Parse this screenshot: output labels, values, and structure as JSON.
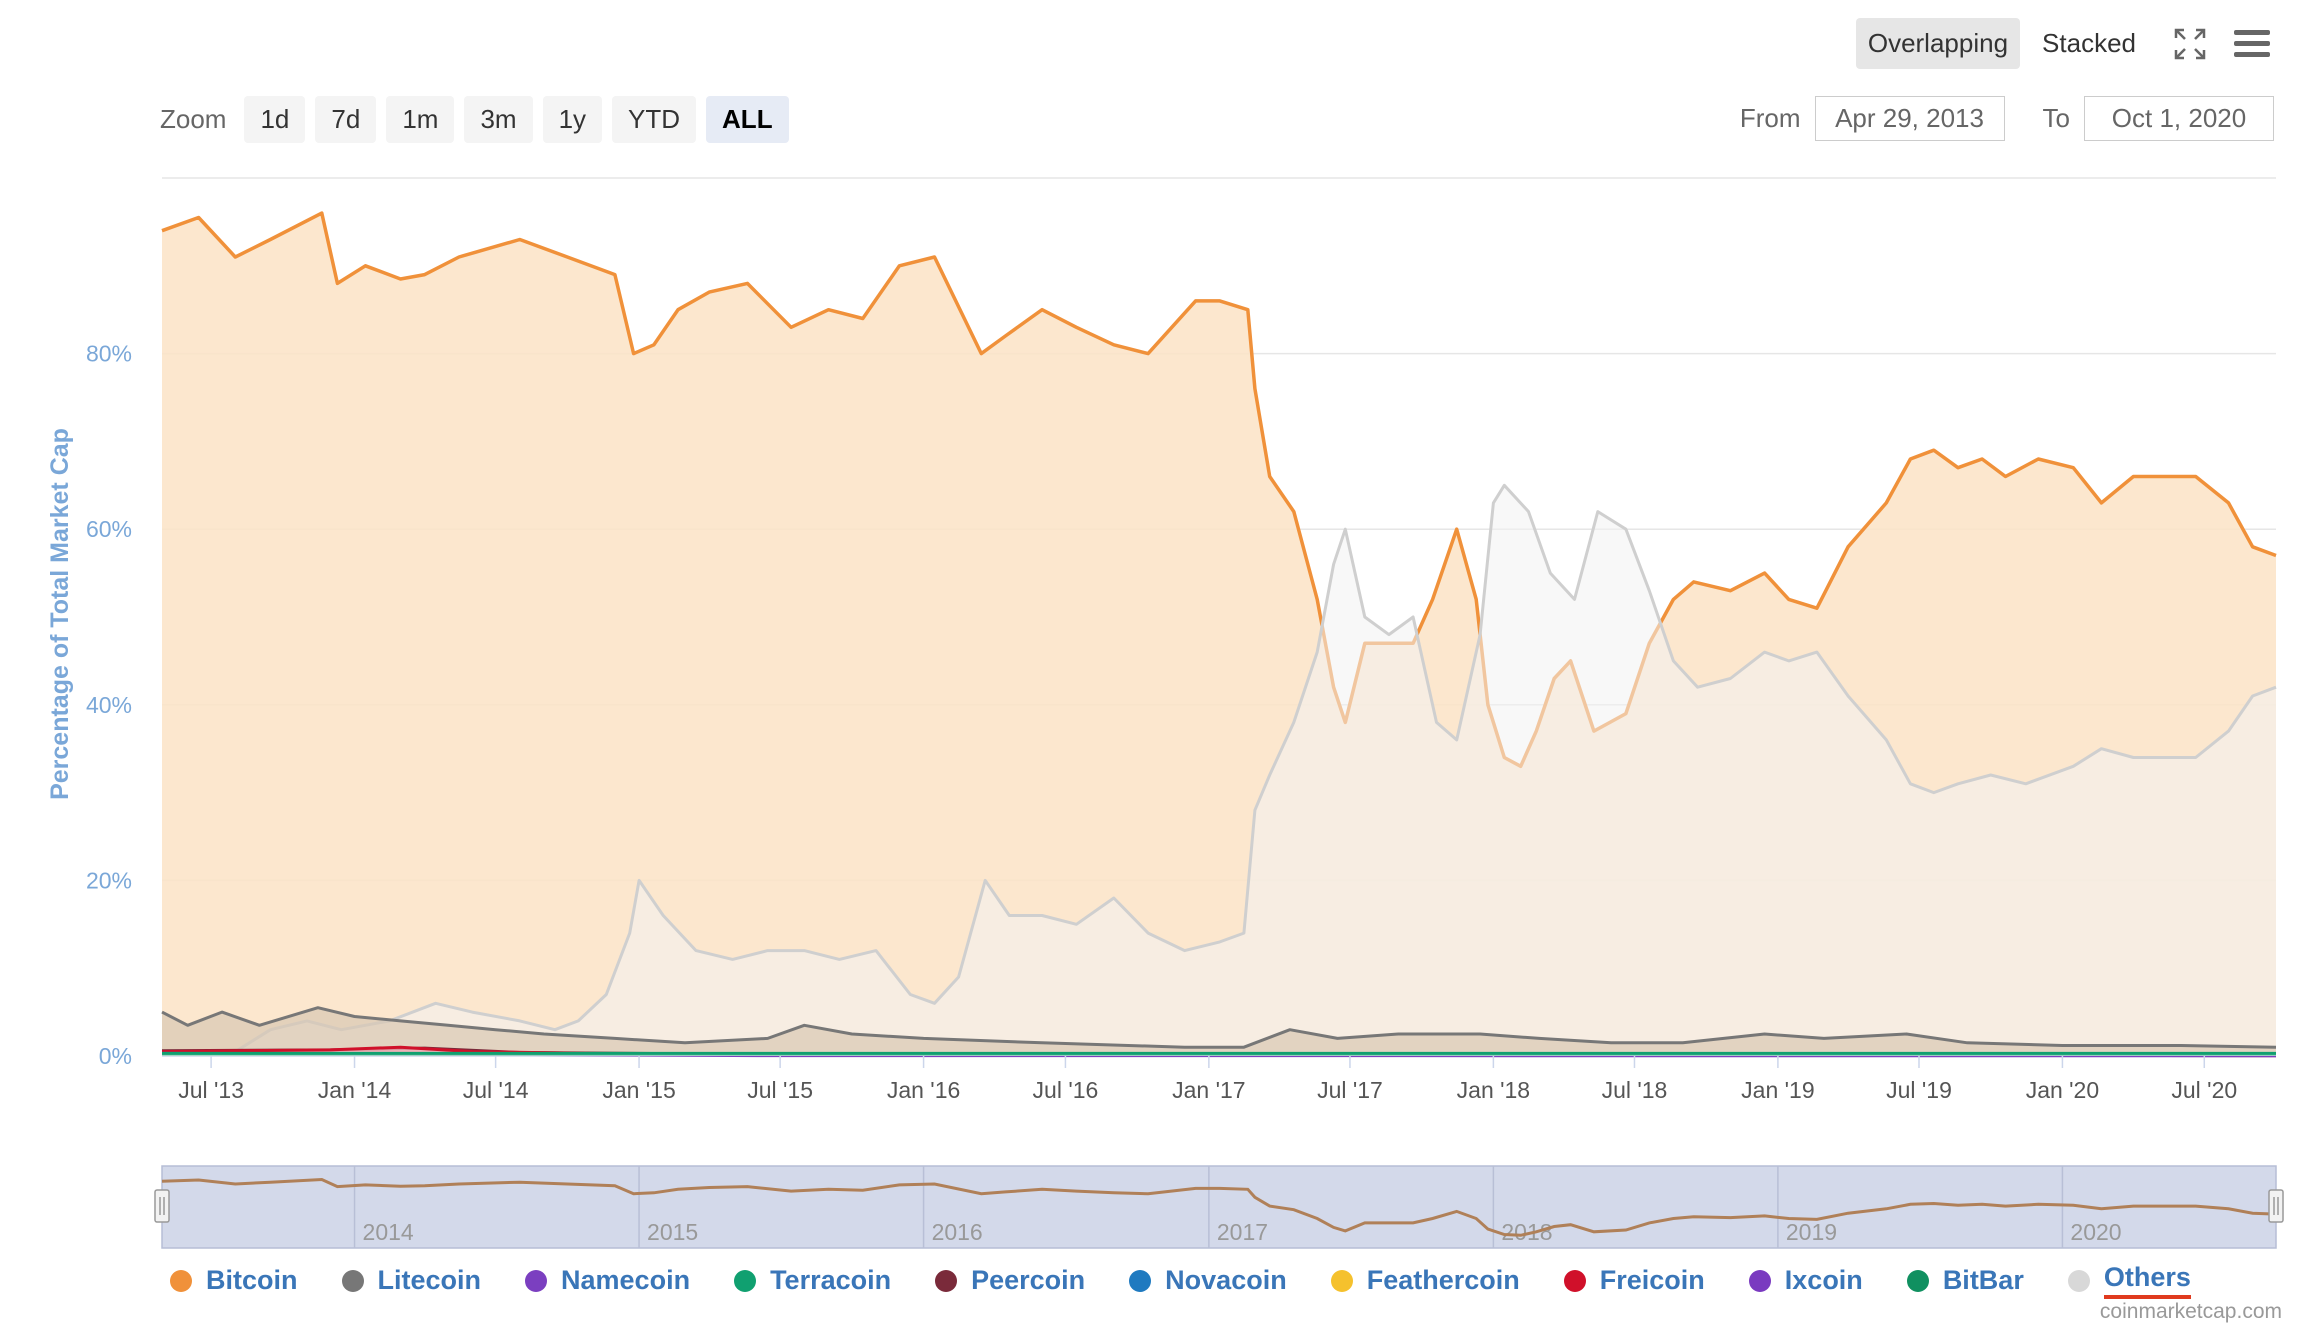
{
  "toolbar": {
    "overlapping_label": "Overlapping",
    "stacked_label": "Stacked",
    "fullscreen_icon": "fullscreen-icon",
    "menu_icon": "hamburger-menu-icon"
  },
  "zoom": {
    "label": "Zoom",
    "buttons": [
      "1d",
      "7d",
      "1m",
      "3m",
      "1y",
      "YTD",
      "ALL"
    ],
    "active": "ALL"
  },
  "range": {
    "from_label": "From",
    "from_value": "Apr 29, 2013",
    "to_label": "To",
    "to_value": "Oct 1, 2020"
  },
  "chart_data": {
    "type": "area",
    "title": "",
    "ylabel": "Percentage of Total Market Cap",
    "xlabel": "",
    "ylim": [
      0,
      100
    ],
    "yticks": [
      "0%",
      "20%",
      "40%",
      "60%",
      "80%"
    ],
    "x_tick_labels": [
      "Jul '13",
      "Jan '14",
      "Jul '14",
      "Jan '15",
      "Jul '15",
      "Jan '16",
      "Jul '16",
      "Jan '17",
      "Jul '17",
      "Jan '18",
      "Jul '18",
      "Jan '19",
      "Jul '19",
      "Jan '20",
      "Jul '20"
    ],
    "navigator_labels": [
      "2014",
      "2015",
      "2016",
      "2017",
      "2018",
      "2019",
      "2020"
    ],
    "grid": true,
    "legend_position": "bottom",
    "series": [
      {
        "name": "Bitcoin",
        "color": "#f0913a",
        "points": [
          [
            "2013-04-29",
            94
          ],
          [
            "2013-06-15",
            95.5
          ],
          [
            "2013-08-01",
            91
          ],
          [
            "2013-09-15",
            93
          ],
          [
            "2013-11-20",
            96
          ],
          [
            "2013-12-10",
            88
          ],
          [
            "2014-01-15",
            90
          ],
          [
            "2014-03-01",
            88.5
          ],
          [
            "2014-04-01",
            89
          ],
          [
            "2014-05-15",
            91
          ],
          [
            "2014-08-01",
            93
          ],
          [
            "2014-10-01",
            91
          ],
          [
            "2014-12-01",
            89
          ],
          [
            "2014-12-25",
            80
          ],
          [
            "2015-01-20",
            81
          ],
          [
            "2015-02-20",
            85
          ],
          [
            "2015-04-01",
            87
          ],
          [
            "2015-05-20",
            88
          ],
          [
            "2015-07-15",
            83
          ],
          [
            "2015-09-01",
            85
          ],
          [
            "2015-10-15",
            84
          ],
          [
            "2015-12-01",
            90
          ],
          [
            "2016-01-15",
            91
          ],
          [
            "2016-03-15",
            80
          ],
          [
            "2016-04-15",
            82
          ],
          [
            "2016-06-01",
            85
          ],
          [
            "2016-07-15",
            83
          ],
          [
            "2016-09-01",
            81
          ],
          [
            "2016-10-15",
            80
          ],
          [
            "2016-12-15",
            86
          ],
          [
            "2017-01-15",
            86
          ],
          [
            "2017-02-20",
            85
          ],
          [
            "2017-03-01",
            76
          ],
          [
            "2017-03-20",
            66
          ],
          [
            "2017-04-20",
            62
          ],
          [
            "2017-05-20",
            52
          ],
          [
            "2017-06-10",
            42
          ],
          [
            "2017-06-25",
            38
          ],
          [
            "2017-07-20",
            47
          ],
          [
            "2017-08-20",
            47
          ],
          [
            "2017-09-20",
            47
          ],
          [
            "2017-10-15",
            52
          ],
          [
            "2017-11-15",
            60
          ],
          [
            "2017-12-10",
            52
          ],
          [
            "2017-12-25",
            40
          ],
          [
            "2018-01-15",
            34
          ],
          [
            "2018-02-05",
            33
          ],
          [
            "2018-02-25",
            37
          ],
          [
            "2018-03-20",
            43
          ],
          [
            "2018-04-10",
            45
          ],
          [
            "2018-05-10",
            37
          ],
          [
            "2018-06-20",
            39
          ],
          [
            "2018-07-20",
            47
          ],
          [
            "2018-08-20",
            52
          ],
          [
            "2018-09-15",
            54
          ],
          [
            "2018-11-01",
            53
          ],
          [
            "2018-12-15",
            55
          ],
          [
            "2019-01-15",
            52
          ],
          [
            "2019-02-20",
            51
          ],
          [
            "2019-04-01",
            58
          ],
          [
            "2019-05-20",
            63
          ],
          [
            "2019-06-20",
            68
          ],
          [
            "2019-07-20",
            69
          ],
          [
            "2019-08-20",
            67
          ],
          [
            "2019-09-20",
            68
          ],
          [
            "2019-10-20",
            66
          ],
          [
            "2019-12-01",
            68
          ],
          [
            "2020-01-15",
            67
          ],
          [
            "2020-02-20",
            63
          ],
          [
            "2020-04-01",
            66
          ],
          [
            "2020-05-20",
            66
          ],
          [
            "2020-06-20",
            66
          ],
          [
            "2020-08-01",
            63
          ],
          [
            "2020-09-01",
            58
          ],
          [
            "2020-10-01",
            57
          ]
        ]
      },
      {
        "name": "Others",
        "color": "#cfcfcf",
        "points": [
          [
            "2013-04-29",
            0.5
          ],
          [
            "2013-08-01",
            0.5
          ],
          [
            "2013-09-15",
            3
          ],
          [
            "2013-11-01",
            4
          ],
          [
            "2013-12-15",
            3
          ],
          [
            "2014-02-15",
            4
          ],
          [
            "2014-04-15",
            6
          ],
          [
            "2014-06-01",
            5
          ],
          [
            "2014-08-01",
            4
          ],
          [
            "2014-09-15",
            3
          ],
          [
            "2014-10-15",
            4
          ],
          [
            "2014-11-20",
            7
          ],
          [
            "2014-12-20",
            14
          ],
          [
            "2015-01-01",
            20
          ],
          [
            "2015-02-01",
            16
          ],
          [
            "2015-03-15",
            12
          ],
          [
            "2015-05-01",
            11
          ],
          [
            "2015-06-15",
            12
          ],
          [
            "2015-08-01",
            12
          ],
          [
            "2015-09-15",
            11
          ],
          [
            "2015-11-01",
            12
          ],
          [
            "2015-12-15",
            7
          ],
          [
            "2016-01-15",
            6
          ],
          [
            "2016-02-15",
            9
          ],
          [
            "2016-03-20",
            20
          ],
          [
            "2016-04-20",
            16
          ],
          [
            "2016-06-01",
            16
          ],
          [
            "2016-07-15",
            15
          ],
          [
            "2016-09-01",
            18
          ],
          [
            "2016-10-15",
            14
          ],
          [
            "2016-12-01",
            12
          ],
          [
            "2017-01-15",
            13
          ],
          [
            "2017-02-15",
            14
          ],
          [
            "2017-03-01",
            28
          ],
          [
            "2017-03-20",
            32
          ],
          [
            "2017-04-20",
            38
          ],
          [
            "2017-05-20",
            46
          ],
          [
            "2017-06-10",
            56
          ],
          [
            "2017-06-25",
            60
          ],
          [
            "2017-07-20",
            50
          ],
          [
            "2017-08-20",
            48
          ],
          [
            "2017-09-20",
            50
          ],
          [
            "2017-10-20",
            38
          ],
          [
            "2017-11-15",
            36
          ],
          [
            "2017-12-15",
            48
          ],
          [
            "2018-01-01",
            63
          ],
          [
            "2018-01-15",
            65
          ],
          [
            "2018-02-15",
            62
          ],
          [
            "2018-03-15",
            55
          ],
          [
            "2018-04-15",
            52
          ],
          [
            "2018-05-15",
            62
          ],
          [
            "2018-06-20",
            60
          ],
          [
            "2018-07-20",
            53
          ],
          [
            "2018-08-20",
            45
          ],
          [
            "2018-09-20",
            42
          ],
          [
            "2018-11-01",
            43
          ],
          [
            "2018-12-15",
            46
          ],
          [
            "2019-01-15",
            45
          ],
          [
            "2019-02-20",
            46
          ],
          [
            "2019-04-01",
            41
          ],
          [
            "2019-05-20",
            36
          ],
          [
            "2019-06-20",
            31
          ],
          [
            "2019-07-20",
            30
          ],
          [
            "2019-08-20",
            31
          ],
          [
            "2019-10-01",
            32
          ],
          [
            "2019-11-15",
            31
          ],
          [
            "2020-01-15",
            33
          ],
          [
            "2020-02-20",
            35
          ],
          [
            "2020-04-01",
            34
          ],
          [
            "2020-05-15",
            34
          ],
          [
            "2020-06-20",
            34
          ],
          [
            "2020-08-01",
            37
          ],
          [
            "2020-09-01",
            41
          ],
          [
            "2020-10-01",
            42
          ]
        ]
      },
      {
        "name": "Litecoin",
        "color": "#777777",
        "points": [
          [
            "2013-04-29",
            5
          ],
          [
            "2013-06-01",
            3.5
          ],
          [
            "2013-07-15",
            5
          ],
          [
            "2013-09-01",
            3.5
          ],
          [
            "2013-11-15",
            5.5
          ],
          [
            "2014-01-01",
            4.5
          ],
          [
            "2014-03-01",
            4
          ],
          [
            "2014-05-01",
            3.5
          ],
          [
            "2014-07-01",
            3
          ],
          [
            "2014-09-01",
            2.5
          ],
          [
            "2014-12-01",
            2
          ],
          [
            "2015-03-01",
            1.5
          ],
          [
            "2015-06-15",
            2
          ],
          [
            "2015-08-01",
            3.5
          ],
          [
            "2015-10-01",
            2.5
          ],
          [
            "2016-01-01",
            2
          ],
          [
            "2016-06-01",
            1.5
          ],
          [
            "2016-12-01",
            1
          ],
          [
            "2017-02-15",
            1
          ],
          [
            "2017-04-15",
            3
          ],
          [
            "2017-06-15",
            2
          ],
          [
            "2017-09-01",
            2.5
          ],
          [
            "2017-12-15",
            2.5
          ],
          [
            "2018-03-01",
            2
          ],
          [
            "2018-06-01",
            1.5
          ],
          [
            "2018-09-01",
            1.5
          ],
          [
            "2018-12-15",
            2.5
          ],
          [
            "2019-03-01",
            2
          ],
          [
            "2019-06-15",
            2.5
          ],
          [
            "2019-09-01",
            1.5
          ],
          [
            "2020-01-01",
            1.2
          ],
          [
            "2020-06-01",
            1.2
          ],
          [
            "2020-10-01",
            1
          ]
        ]
      },
      {
        "name": "Namecoin",
        "color": "#7b3fc0",
        "points": [
          [
            "2013-04-29",
            0.3
          ],
          [
            "2014-06-01",
            0.2
          ],
          [
            "2015-06-01",
            0.05
          ],
          [
            "2020-10-01",
            0.02
          ]
        ]
      },
      {
        "name": "Terracoin",
        "color": "#10a070",
        "points": [
          [
            "2013-04-29",
            0.3
          ],
          [
            "2020-10-01",
            0.3
          ]
        ]
      },
      {
        "name": "Peercoin",
        "color": "#7a2a3a",
        "points": [
          [
            "2013-04-29",
            0.6
          ],
          [
            "2013-12-01",
            0.7
          ],
          [
            "2014-04-01",
            0.9
          ],
          [
            "2014-08-01",
            0.4
          ],
          [
            "2015-06-01",
            0.2
          ],
          [
            "2020-10-01",
            0.05
          ]
        ]
      },
      {
        "name": "Novacoin",
        "color": "#1f7ac0",
        "points": []
      },
      {
        "name": "Feathercoin",
        "color": "#f5c12d",
        "points": []
      },
      {
        "name": "Freicoin",
        "color": "#d0102a",
        "points": [
          [
            "2013-04-29",
            0.5
          ],
          [
            "2013-12-01",
            0.7
          ],
          [
            "2014-03-01",
            1
          ],
          [
            "2014-06-01",
            0.5
          ],
          [
            "2015-01-01",
            0.2
          ],
          [
            "2020-10-01",
            0.05
          ]
        ]
      },
      {
        "name": "Ixcoin",
        "color": "#7a3ac0",
        "points": []
      },
      {
        "name": "BitBar",
        "color": "#109060",
        "points": []
      }
    ]
  },
  "legend": [
    {
      "name": "Bitcoin",
      "color": "#f0913a"
    },
    {
      "name": "Litecoin",
      "color": "#777777"
    },
    {
      "name": "Namecoin",
      "color": "#7b3fc0"
    },
    {
      "name": "Terracoin",
      "color": "#10a070"
    },
    {
      "name": "Peercoin",
      "color": "#7a2a3a"
    },
    {
      "name": "Novacoin",
      "color": "#1f7ac0"
    },
    {
      "name": "Feathercoin",
      "color": "#f5c12d"
    },
    {
      "name": "Freicoin",
      "color": "#d0102a"
    },
    {
      "name": "Ixcoin",
      "color": "#7a3ac0"
    },
    {
      "name": "BitBar",
      "color": "#109060"
    },
    {
      "name": "Others",
      "color": "#d8d8d8"
    }
  ],
  "credits": "coinmarketcap.com"
}
